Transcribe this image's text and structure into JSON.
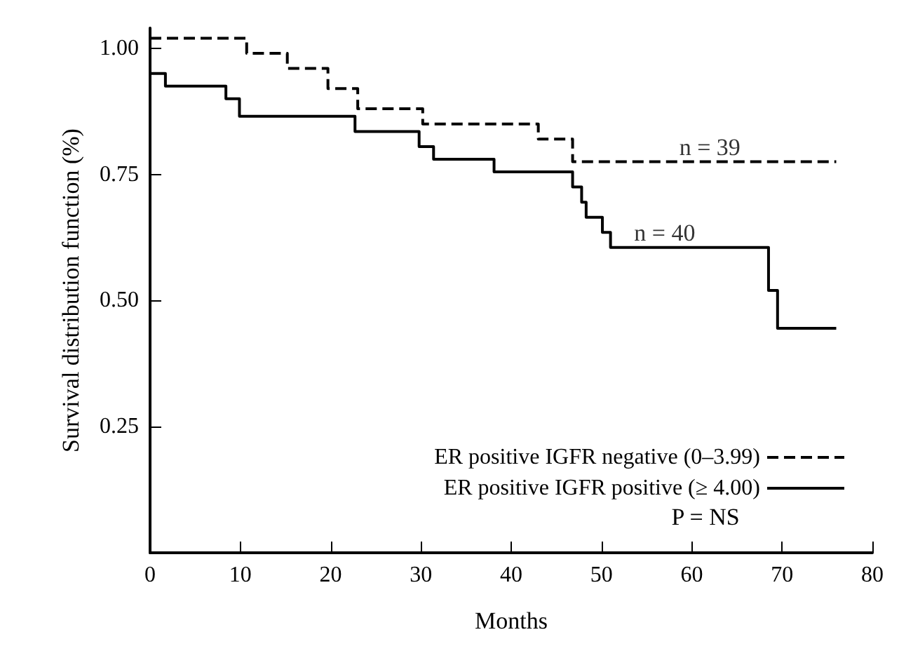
{
  "chart_data": {
    "type": "step",
    "xlabel": "Months",
    "ylabel": "Survival distribution function (%)",
    "xlim": [
      0,
      80
    ],
    "xticks": [
      0,
      10,
      20,
      30,
      40,
      50,
      60,
      70,
      80
    ],
    "ylim": [
      0,
      1.04
    ],
    "yticks": [
      {
        "value": 0.25,
        "label": "0.25"
      },
      {
        "value": 0.5,
        "label": "0.50"
      },
      {
        "value": 0.75,
        "label": "0.75"
      },
      {
        "value": 1,
        "label": "1.00"
      }
    ],
    "grid": false,
    "legend": "bottom right",
    "series": [
      {
        "name": "ER positive IGFR negative (0–3.99)",
        "color": "#000000",
        "line_style": "dashed",
        "x": [
          0,
          10.7,
          15.2,
          19.7,
          23,
          30.2,
          43,
          46.8,
          76
        ],
        "values": [
          1.02,
          0.99,
          0.96,
          0.92,
          0.88,
          0.85,
          0.82,
          0.775,
          0.775
        ]
      },
      {
        "name": "ER positive IGFR positive (≥ 4.00)",
        "color": "#000000",
        "line_style": "solid",
        "x": [
          0,
          1.7,
          8.4,
          9.9,
          22.7,
          29.8,
          31.4,
          38.1,
          46.8,
          47.8,
          48.3,
          50.1,
          51,
          68.5,
          69.5,
          76
        ],
        "values": [
          0.95,
          0.925,
          0.9,
          0.865,
          0.835,
          0.805,
          0.78,
          0.755,
          0.725,
          0.695,
          0.665,
          0.635,
          0.605,
          0.52,
          0.445,
          0.445
        ]
      }
    ],
    "annotations": [
      {
        "text": "n = 39",
        "x": 62,
        "y": 0.775
      },
      {
        "text": "n = 40",
        "x": 57,
        "y": 0.605
      },
      "P = NS"
    ]
  }
}
